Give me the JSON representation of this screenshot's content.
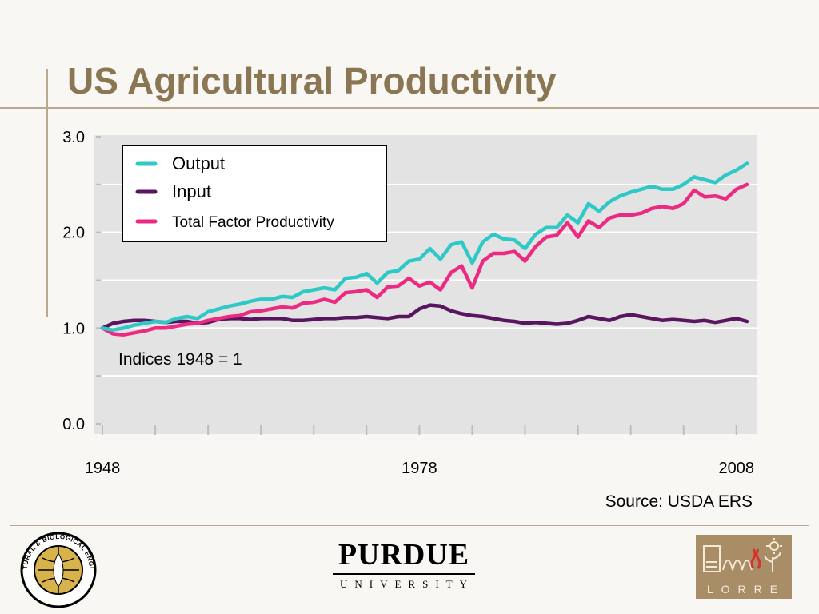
{
  "slide": {
    "title": "US Agricultural Productivity",
    "source": "Source: USDA  ERS"
  },
  "footer": {
    "abe_logo_text": "AGRICULTURAL & BIOLOGICAL ENGINEERING",
    "purdue_name": "PURDUE",
    "purdue_sub": "UNIVERSITY",
    "lorre_text": "LORRE"
  },
  "colors": {
    "title": "#8a7652",
    "plot_bg": "#e3e3e3",
    "output": "#2ec8c6",
    "input": "#5a1560",
    "tfp": "#ec2a82"
  },
  "chart_data": {
    "type": "line",
    "x": [
      1948,
      1949,
      1950,
      1951,
      1952,
      1953,
      1954,
      1955,
      1956,
      1957,
      1958,
      1959,
      1960,
      1961,
      1962,
      1963,
      1964,
      1965,
      1966,
      1967,
      1968,
      1969,
      1970,
      1971,
      1972,
      1973,
      1974,
      1975,
      1976,
      1977,
      1978,
      1979,
      1980,
      1981,
      1982,
      1983,
      1984,
      1985,
      1986,
      1987,
      1988,
      1989,
      1990,
      1991,
      1992,
      1993,
      1994,
      1995,
      1996,
      1997,
      1998,
      1999,
      2000,
      2001,
      2002,
      2003,
      2004,
      2005,
      2006,
      2007,
      2008,
      2009
    ],
    "series": [
      {
        "name": "Output",
        "color": "#2ec8c6",
        "values": [
          1.0,
          0.98,
          1.0,
          1.03,
          1.05,
          1.07,
          1.06,
          1.1,
          1.12,
          1.1,
          1.17,
          1.2,
          1.23,
          1.25,
          1.28,
          1.3,
          1.3,
          1.33,
          1.32,
          1.38,
          1.4,
          1.42,
          1.4,
          1.52,
          1.53,
          1.57,
          1.47,
          1.58,
          1.6,
          1.7,
          1.72,
          1.83,
          1.72,
          1.87,
          1.9,
          1.68,
          1.9,
          1.98,
          1.93,
          1.92,
          1.83,
          1.98,
          2.05,
          2.05,
          2.18,
          2.1,
          2.3,
          2.22,
          2.32,
          2.38,
          2.42,
          2.45,
          2.48,
          2.45,
          2.45,
          2.5,
          2.58,
          2.55,
          2.52,
          2.6,
          2.65,
          2.72
        ]
      },
      {
        "name": "Input",
        "color": "#5a1560",
        "values": [
          1.0,
          1.05,
          1.07,
          1.08,
          1.08,
          1.07,
          1.06,
          1.07,
          1.07,
          1.05,
          1.06,
          1.09,
          1.1,
          1.1,
          1.09,
          1.1,
          1.1,
          1.1,
          1.08,
          1.08,
          1.09,
          1.1,
          1.1,
          1.11,
          1.11,
          1.12,
          1.11,
          1.1,
          1.12,
          1.12,
          1.2,
          1.24,
          1.23,
          1.18,
          1.15,
          1.13,
          1.12,
          1.1,
          1.08,
          1.07,
          1.05,
          1.06,
          1.05,
          1.04,
          1.05,
          1.08,
          1.12,
          1.1,
          1.08,
          1.12,
          1.14,
          1.12,
          1.1,
          1.08,
          1.09,
          1.08,
          1.07,
          1.08,
          1.06,
          1.08,
          1.1,
          1.07
        ]
      },
      {
        "name": "Total Factor Productivity",
        "color": "#ec2a82",
        "values": [
          1.0,
          0.94,
          0.93,
          0.95,
          0.97,
          1.0,
          1.0,
          1.02,
          1.04,
          1.05,
          1.08,
          1.1,
          1.12,
          1.13,
          1.17,
          1.18,
          1.2,
          1.22,
          1.21,
          1.26,
          1.27,
          1.3,
          1.27,
          1.37,
          1.38,
          1.4,
          1.32,
          1.43,
          1.44,
          1.52,
          1.44,
          1.48,
          1.4,
          1.58,
          1.65,
          1.42,
          1.7,
          1.78,
          1.78,
          1.8,
          1.7,
          1.85,
          1.95,
          1.97,
          2.1,
          1.95,
          2.12,
          2.05,
          2.15,
          2.18,
          2.18,
          2.2,
          2.25,
          2.27,
          2.25,
          2.3,
          2.44,
          2.37,
          2.38,
          2.35,
          2.45,
          2.5
        ]
      }
    ],
    "xlim": [
      1948,
      2009
    ],
    "ylim": [
      0,
      3
    ],
    "yticks": [
      "0.0",
      "1.0",
      "2.0",
      "3.0"
    ],
    "xticks": [
      "1948",
      "1978",
      "2008"
    ],
    "annotation": "Indices 1948 = 1",
    "legend_position": "top-left",
    "grid": true
  }
}
